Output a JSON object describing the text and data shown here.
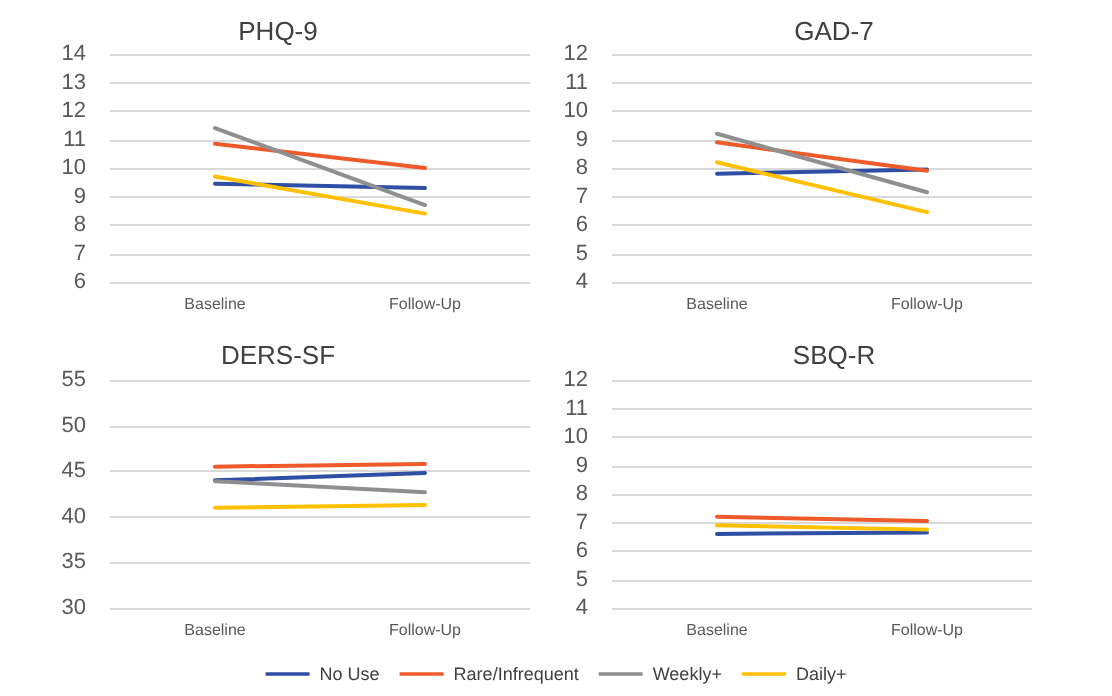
{
  "chart_data": [
    {
      "type": "line",
      "title": "PHQ-9",
      "categories": [
        "Baseline",
        "Follow-Up"
      ],
      "ylim": [
        6,
        14
      ],
      "yticks": [
        6,
        7,
        8,
        9,
        10,
        11,
        12,
        13,
        14
      ],
      "grid": "y",
      "marker": "none",
      "legend": "bottom",
      "series": [
        {
          "name": "No Use",
          "color": "#2e4fa3",
          "values": [
            9.45,
            9.3
          ]
        },
        {
          "name": "Rare/Infrequent",
          "color": "#ee5a2a",
          "values": [
            10.85,
            10.0
          ]
        },
        {
          "name": "Weekly+",
          "color": "#8f8f8f",
          "values": [
            11.4,
            8.7
          ]
        },
        {
          "name": "Daily+",
          "color": "#ffc000",
          "values": [
            9.7,
            8.4
          ]
        }
      ]
    },
    {
      "type": "line",
      "title": "GAD-7",
      "categories": [
        "Baseline",
        "Follow-Up"
      ],
      "ylim": [
        4,
        12
      ],
      "yticks": [
        4,
        5,
        6,
        7,
        8,
        9,
        10,
        11,
        12
      ],
      "grid": "y",
      "marker": "none",
      "legend": "bottom",
      "series": [
        {
          "name": "No Use",
          "color": "#2e4fa3",
          "values": [
            7.8,
            7.95
          ]
        },
        {
          "name": "Rare/Infrequent",
          "color": "#ee5a2a",
          "values": [
            8.9,
            7.9
          ]
        },
        {
          "name": "Weekly+",
          "color": "#8f8f8f",
          "values": [
            9.2,
            7.15
          ]
        },
        {
          "name": "Daily+",
          "color": "#ffc000",
          "values": [
            8.2,
            6.45
          ]
        }
      ]
    },
    {
      "type": "line",
      "title": "DERS-SF",
      "categories": [
        "Baseline",
        "Follow-Up"
      ],
      "ylim": [
        30,
        55
      ],
      "yticks": [
        30,
        35,
        40,
        45,
        50,
        55
      ],
      "grid": "y",
      "marker": "none",
      "legend": "bottom",
      "series": [
        {
          "name": "No Use",
          "color": "#2e4fa3",
          "values": [
            44.0,
            44.8
          ]
        },
        {
          "name": "Rare/Infrequent",
          "color": "#ee5a2a",
          "values": [
            45.5,
            45.8
          ]
        },
        {
          "name": "Weekly+",
          "color": "#8f8f8f",
          "values": [
            43.9,
            42.7
          ]
        },
        {
          "name": "Daily+",
          "color": "#ffc000",
          "values": [
            41.0,
            41.3
          ]
        }
      ]
    },
    {
      "type": "line",
      "title": "SBQ-R",
      "categories": [
        "Baseline",
        "Follow-Up"
      ],
      "ylim": [
        4,
        12
      ],
      "yticks": [
        4,
        5,
        6,
        7,
        8,
        9,
        10,
        11,
        12
      ],
      "grid": "y",
      "marker": "none",
      "legend": "bottom",
      "series": [
        {
          "name": "No Use",
          "color": "#2e4fa3",
          "values": [
            6.6,
            6.65
          ]
        },
        {
          "name": "Rare/Infrequent",
          "color": "#ee5a2a",
          "values": [
            7.2,
            7.05
          ]
        },
        {
          "name": "Weekly+",
          "color": "#8f8f8f",
          "values": [
            null,
            null
          ]
        },
        {
          "name": "Daily+",
          "color": "#ffc000",
          "values": [
            6.9,
            6.75
          ]
        }
      ]
    }
  ]
}
